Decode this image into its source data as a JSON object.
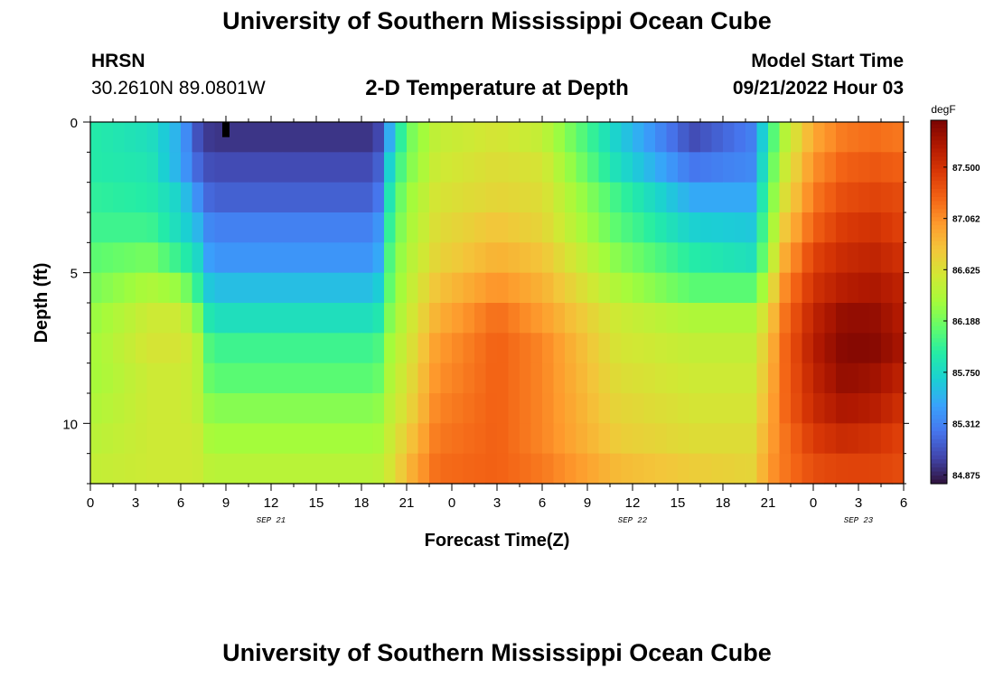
{
  "page": {
    "title_top": "University of Southern Mississippi Ocean Cube",
    "title_bottom": "University of Southern Mississippi Ocean Cube"
  },
  "station": {
    "name": "HRSN",
    "coords": "30.2610N  89.0801W"
  },
  "model_start": {
    "label": "Model Start Time",
    "value": "09/21/2022 Hour 03"
  },
  "colors": {
    "scale": [
      "#30123b",
      "#4145ab",
      "#4675ed",
      "#39a2fc",
      "#1bcfd4",
      "#24eca6",
      "#61fc6c",
      "#a4fc3b",
      "#d1e834",
      "#f3c63a",
      "#fe9b2d",
      "#f36315",
      "#d93806",
      "#b11901",
      "#7a0402"
    ]
  },
  "chart_data": {
    "type": "heatmap",
    "title": "2-D Temperature at Depth",
    "xlabel": "Forecast Time(Z)",
    "ylabel": "Depth (ft)",
    "x_unit": "hours since 2022-09-21 00Z",
    "x_range": [
      0,
      54
    ],
    "x_tick_labels": [
      "0",
      "3",
      "6",
      "9",
      "12",
      "15",
      "18",
      "21",
      "0",
      "3",
      "6",
      "9",
      "12",
      "15",
      "18",
      "21",
      "0",
      "3",
      "6"
    ],
    "date_labels": [
      {
        "text": "SEP 21",
        "x": 12
      },
      {
        "text": "SEP 22",
        "x": 36
      },
      {
        "text": "SEP 23",
        "x": 51
      }
    ],
    "y_range": [
      0,
      12
    ],
    "y_tick_labels": [
      "0",
      "5",
      "10"
    ],
    "colorbar": {
      "unit": "degF",
      "min": 84.8,
      "max": 87.9,
      "tick_labels": [
        "87.500",
        "87.062",
        "86.625",
        "86.188",
        "85.750",
        "85.312",
        "84.875"
      ]
    },
    "depth_levels": [
      0.5,
      1.5,
      2.5,
      3.5,
      4.5,
      5.5,
      6.5,
      7.5,
      8.5,
      9.5,
      10.5,
      11.5
    ],
    "time_knots": [
      0,
      4,
      6,
      7,
      8,
      19,
      20,
      21,
      23,
      27,
      30,
      35,
      40,
      44,
      45,
      46,
      48,
      50,
      52,
      54
    ],
    "values": [
      [
        85.9,
        85.8,
        85.5,
        85.1,
        84.95,
        84.95,
        85.6,
        86.15,
        86.5,
        86.6,
        86.5,
        85.7,
        85.05,
        85.3,
        85.9,
        86.4,
        86.95,
        87.15,
        87.2,
        87.15
      ],
      [
        85.9,
        85.85,
        85.5,
        85.2,
        85.05,
        85.05,
        85.8,
        86.2,
        86.55,
        86.65,
        86.6,
        85.8,
        85.25,
        85.35,
        86.0,
        86.5,
        87.05,
        87.25,
        87.3,
        87.25
      ],
      [
        85.95,
        85.9,
        85.7,
        85.4,
        85.15,
        85.15,
        85.95,
        86.3,
        86.6,
        86.7,
        86.65,
        86.0,
        85.5,
        85.5,
        86.1,
        86.6,
        87.15,
        87.35,
        87.4,
        87.35
      ],
      [
        86.0,
        86.0,
        85.75,
        85.6,
        85.3,
        85.3,
        86.05,
        86.35,
        86.65,
        86.8,
        86.7,
        86.1,
        85.7,
        85.65,
        86.2,
        86.75,
        87.25,
        87.45,
        87.5,
        87.4
      ],
      [
        86.1,
        86.2,
        85.95,
        85.8,
        85.4,
        85.4,
        86.15,
        86.4,
        86.7,
        86.9,
        86.8,
        86.25,
        85.9,
        85.8,
        86.3,
        86.9,
        87.4,
        87.55,
        87.6,
        87.5
      ],
      [
        86.2,
        86.4,
        86.3,
        86.0,
        85.6,
        85.6,
        86.2,
        86.45,
        86.8,
        87.05,
        86.9,
        86.4,
        86.1,
        86.1,
        86.5,
        87.05,
        87.5,
        87.65,
        87.7,
        87.6
      ],
      [
        86.3,
        86.55,
        86.55,
        86.3,
        85.8,
        85.8,
        86.3,
        86.5,
        86.9,
        87.2,
        87.0,
        86.55,
        86.4,
        86.4,
        86.7,
        87.15,
        87.6,
        87.8,
        87.8,
        87.65
      ],
      [
        86.35,
        86.6,
        86.6,
        86.5,
        86.0,
        86.0,
        86.4,
        86.55,
        87.0,
        87.25,
        87.1,
        86.6,
        86.5,
        86.5,
        86.8,
        87.2,
        87.65,
        87.85,
        87.85,
        87.7
      ],
      [
        86.35,
        86.55,
        86.55,
        86.5,
        86.1,
        86.1,
        86.45,
        86.6,
        87.05,
        87.25,
        87.1,
        86.65,
        86.55,
        86.55,
        86.85,
        87.2,
        87.6,
        87.8,
        87.75,
        87.6
      ],
      [
        86.4,
        86.55,
        86.55,
        86.5,
        86.25,
        86.25,
        86.5,
        86.65,
        87.1,
        87.25,
        87.1,
        86.7,
        86.6,
        86.6,
        86.9,
        87.2,
        87.55,
        87.7,
        87.65,
        87.5
      ],
      [
        86.45,
        86.55,
        86.55,
        86.55,
        86.35,
        86.35,
        86.55,
        86.75,
        87.15,
        87.25,
        87.1,
        86.75,
        86.65,
        86.65,
        86.95,
        87.15,
        87.45,
        87.55,
        87.5,
        87.4
      ],
      [
        86.5,
        86.55,
        86.55,
        86.55,
        86.45,
        86.45,
        86.6,
        86.85,
        87.2,
        87.25,
        87.15,
        86.85,
        86.75,
        86.7,
        87.0,
        87.15,
        87.35,
        87.4,
        87.4,
        87.35
      ]
    ],
    "marker": {
      "time": 9,
      "depth": 0.25
    },
    "grid": false
  }
}
